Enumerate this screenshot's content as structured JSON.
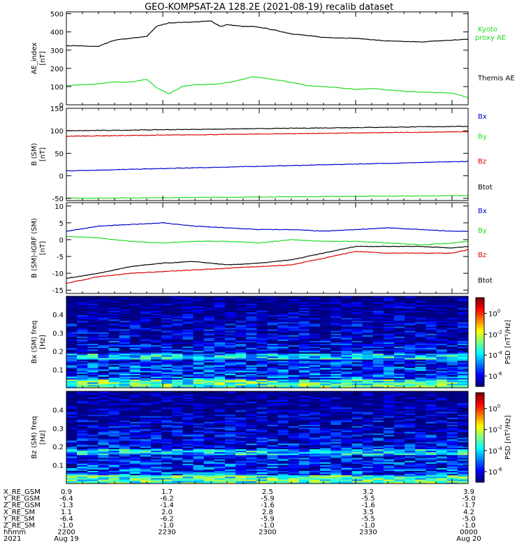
{
  "chart_data": {
    "title": "GEO-KOMPSAT-2A 128.2E (2021-08-19) recalib dataset",
    "x_start": "2021-08-19 22:00",
    "x_end": "2021-08-20 00:05",
    "x_ticks": [
      "2200",
      "2230",
      "2300",
      "2330",
      "0000"
    ],
    "panels": [
      {
        "type": "line",
        "ylabel": "AE_index [nT]",
        "ylim": [
          0,
          510
        ],
        "yticks": [
          0,
          100,
          200,
          300,
          400,
          500
        ],
        "series": [
          {
            "name": "Kyoto proxy AE",
            "color": "#22dd22",
            "x_min": [
              0,
              10,
              15,
              20,
              25,
              28,
              32,
              36,
              40,
              48,
              55,
              58,
              62,
              68,
              75,
              80,
              90,
              96,
              100,
              110,
              120,
              125
            ],
            "values": [
              105,
              115,
              125,
              125,
              140,
              95,
              60,
              100,
              110,
              115,
              140,
              155,
              145,
              130,
              105,
              100,
              85,
              90,
              80,
              70,
              65,
              40
            ]
          },
          {
            "name": "Themis AE",
            "color": "#000000",
            "x_min": [
              0,
              10,
              15,
              20,
              25,
              28,
              32,
              40,
              45,
              48,
              50,
              55,
              58,
              62,
              70,
              75,
              80,
              90,
              100,
              110,
              125
            ],
            "values": [
              325,
              320,
              355,
              365,
              375,
              430,
              450,
              455,
              460,
              430,
              440,
              430,
              430,
              420,
              390,
              380,
              370,
              365,
              350,
              345,
              360
            ]
          }
        ]
      },
      {
        "type": "line",
        "ylabel": "B (SM) [nT]",
        "ylim": [
          -55,
          150
        ],
        "yticks": [
          -50,
          0,
          50,
          100,
          150
        ],
        "series": [
          {
            "name": "Bx",
            "color": "#0000cc",
            "x_min": [
              0,
              125
            ],
            "values": [
              11,
              32
            ]
          },
          {
            "name": "By",
            "color": "#22dd22",
            "x_min": [
              0,
              125
            ],
            "values": [
              -50,
              -44
            ]
          },
          {
            "name": "Bz",
            "color": "#dd0000",
            "x_min": [
              0,
              125
            ],
            "values": [
              88,
              98
            ]
          },
          {
            "name": "Btot",
            "color": "#000000",
            "x_min": [
              0,
              125
            ],
            "values": [
              100,
              110
            ]
          }
        ]
      },
      {
        "type": "line",
        "ylabel": "B (SM)-IGRF (SM) [nT]",
        "ylim": [
          -16,
          11
        ],
        "yticks": [
          -15,
          -10,
          -5,
          0,
          5,
          10
        ],
        "series": [
          {
            "name": "Bx",
            "color": "#0000cc",
            "x_min": [
              0,
              10,
              20,
              30,
              40,
              50,
              60,
              70,
              80,
              90,
              100,
              110,
              120,
              125
            ],
            "values": [
              2.5,
              4,
              4.5,
              5,
              4,
              3.5,
              3,
              3,
              2.5,
              3,
              3.5,
              3,
              2.5,
              2.5
            ]
          },
          {
            "name": "By",
            "color": "#22dd22",
            "x_min": [
              0,
              10,
              20,
              30,
              40,
              50,
              60,
              70,
              80,
              90,
              100,
              110,
              120,
              125
            ],
            "values": [
              1,
              0.5,
              -0.5,
              -1,
              -0.5,
              -0.5,
              -1,
              0,
              -0.5,
              -0.5,
              -1,
              -1.5,
              -1,
              -0.5
            ]
          },
          {
            "name": "Bz",
            "color": "#dd0000",
            "x_min": [
              0,
              10,
              20,
              30,
              40,
              50,
              60,
              70,
              80,
              90,
              100,
              110,
              120,
              125
            ],
            "values": [
              -13,
              -11,
              -10,
              -9.5,
              -9,
              -8.5,
              -8,
              -7.5,
              -5.5,
              -3.5,
              -4,
              -4,
              -4,
              -3
            ]
          },
          {
            "name": "Btot",
            "color": "#000000",
            "x_min": [
              0,
              10,
              20,
              30,
              40,
              50,
              60,
              70,
              80,
              90,
              100,
              110,
              120,
              125
            ],
            "values": [
              -11.5,
              -10,
              -8,
              -7,
              -6.5,
              -7.5,
              -7,
              -6,
              -4,
              -2,
              -2,
              -2,
              -2.5,
              -2
            ]
          }
        ]
      },
      {
        "type": "heatmap",
        "ylabel": "Bx (SM) freq [Hz]",
        "ylim": [
          0,
          0.5
        ],
        "yticks": [
          0.1,
          0.2,
          0.3,
          0.4
        ],
        "colorbar_label": "PSD [nT^2/Hz]",
        "colorbar_ticks": [
          "10^0",
          "10^-2",
          "10^-4",
          "10^-6"
        ],
        "colorbar_range_log": [
          -7,
          1.5
        ]
      },
      {
        "type": "heatmap",
        "ylabel": "Bz (SM) freq [Hz]",
        "ylim": [
          0,
          0.5
        ],
        "yticks": [
          0.1,
          0.2,
          0.3,
          0.4
        ],
        "colorbar_label": "PSD [nT^2/Hz]",
        "colorbar_ticks": [
          "10^0",
          "10^-2",
          "10^-4",
          "10^-6"
        ],
        "colorbar_range_log": [
          -7,
          1.5
        ]
      }
    ],
    "ephemeris": {
      "labels": [
        "X_RE_GSM",
        "Y_RE_GSM",
        "Z_RE_GSM",
        "X_RE_SM",
        "Y_RE_SM",
        "Z_RE_SM",
        "hhmm",
        "2021"
      ],
      "columns": [
        [
          "0.9",
          "-6.4",
          "-1.3",
          "1.1",
          "-6.4",
          "-1.0",
          "2200",
          "Aug 19"
        ],
        [
          "1.7",
          "-6.2",
          "-1.4",
          "2.0",
          "-6.2",
          "-1.0",
          "2230",
          ""
        ],
        [
          "2.5",
          "-5.9",
          "-1.6",
          "2.8",
          "-5.9",
          "-1.0",
          "2300",
          ""
        ],
        [
          "3.2",
          "-5.5",
          "-1.6",
          "3.5",
          "-5.5",
          "-1.0",
          "2330",
          ""
        ],
        [
          "3.9",
          "-5.0",
          "-1.7",
          "4.2",
          "-5.0",
          "-1.0",
          "0000",
          "Aug 20"
        ]
      ]
    }
  },
  "colors": {
    "blue": "#0000cc",
    "green": "#22dd22",
    "red": "#dd0000",
    "black": "#000000"
  }
}
